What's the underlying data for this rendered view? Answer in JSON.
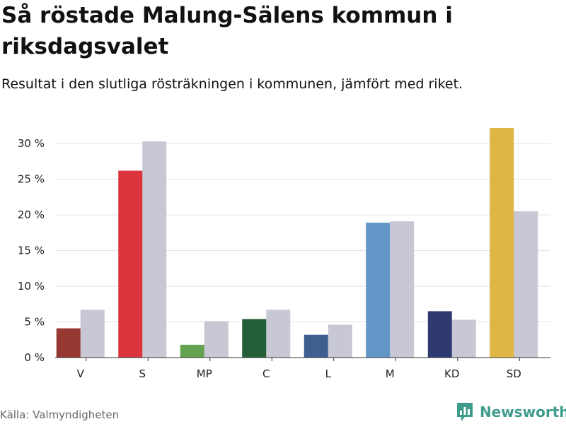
{
  "title": "Så röstade Malung-Sälens kommun i riksdagsvalet",
  "subtitle": "Resultat i den slutliga rösträkningen i kommunen, jämfört med riket.",
  "source": "Källa: Valmyndigheten",
  "brand": "Newsworthy",
  "colors": {
    "national": "#c8c7d4",
    "grid": "#e2e2e2",
    "axis": "#333333",
    "brand": "#3e9c8c"
  },
  "chart_data": {
    "type": "bar",
    "title": "Så röstade Malung-Sälens kommun i riksdagsvalet",
    "xlabel": "",
    "ylabel": "",
    "ylim": [
      0,
      32
    ],
    "yticks": [
      0,
      5,
      10,
      15,
      20,
      25,
      30
    ],
    "ytick_labels": [
      "0 %",
      "5 %",
      "10 %",
      "15 %",
      "20 %",
      "25 %",
      "30 %"
    ],
    "categories": [
      "V",
      "S",
      "MP",
      "C",
      "L",
      "M",
      "KD",
      "SD"
    ],
    "category_colors": [
      "#983833",
      "#dc343d",
      "#64a24f",
      "#255f37",
      "#3f5f90",
      "#6196c6",
      "#2f3a70",
      "#dfb545"
    ],
    "series": [
      {
        "name": "Malung-Sälens kommun",
        "values": [
          4.1,
          26.2,
          1.8,
          5.4,
          3.2,
          18.9,
          6.5,
          32.2
        ]
      },
      {
        "name": "Riket",
        "values": [
          6.7,
          30.3,
          5.1,
          6.7,
          4.6,
          19.1,
          5.3,
          20.5
        ]
      }
    ]
  }
}
